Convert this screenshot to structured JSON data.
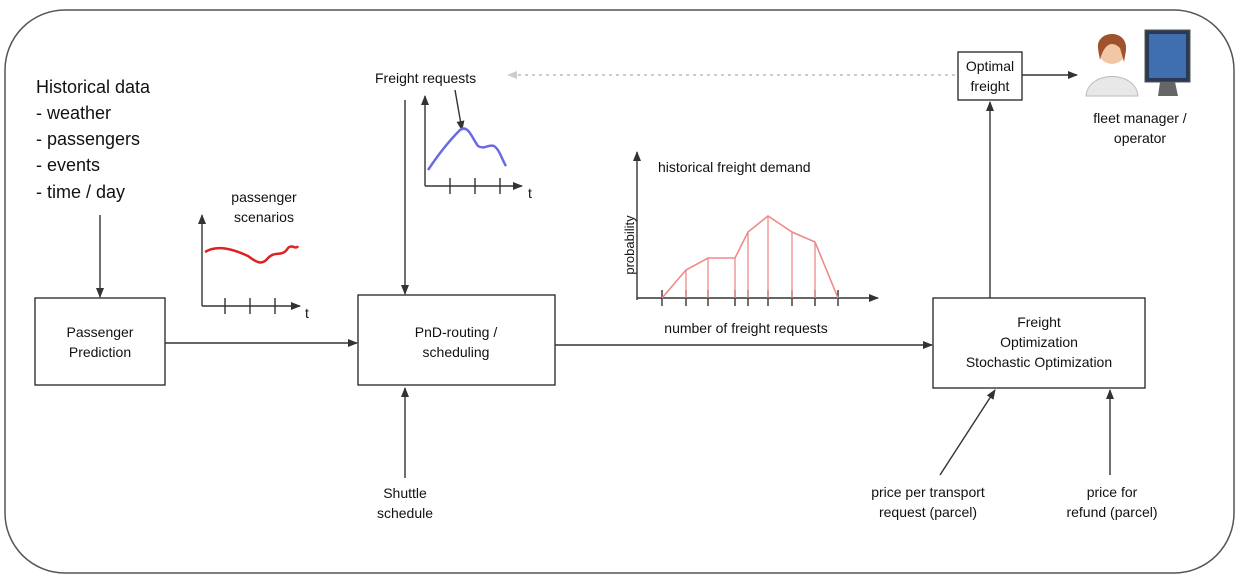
{
  "historical_data": {
    "title": "Historical data",
    "items": [
      "- weather",
      "- passengers",
      "- events",
      "- time / day"
    ]
  },
  "passenger_scenarios": {
    "label": [
      "passenger",
      "scenarios"
    ],
    "axis_label": "t"
  },
  "freight_requests": {
    "label": "Freight requests",
    "axis_label": "t"
  },
  "historical_freight_demand": {
    "title": "historical freight demand",
    "y_label": "probability",
    "x_label": "number of freight requests"
  },
  "nodes": [
    {
      "label": [
        "Passenger",
        "Prediction"
      ]
    },
    {
      "label": [
        "PnD-routing /",
        "scheduling"
      ]
    },
    {
      "label": [
        "Freight",
        "Optimization",
        "Stochastic Optimization"
      ]
    },
    {
      "label": [
        "Optimal",
        "freight"
      ]
    }
  ],
  "inputs": [
    {
      "label": [
        "Shuttle",
        "schedule"
      ]
    },
    {
      "label": [
        "price per transport",
        "request (parcel)"
      ]
    },
    {
      "label": [
        "price for",
        "refund (parcel)"
      ]
    }
  ],
  "fleet_manager": {
    "label": [
      "fleet manager /",
      "operator"
    ]
  }
}
